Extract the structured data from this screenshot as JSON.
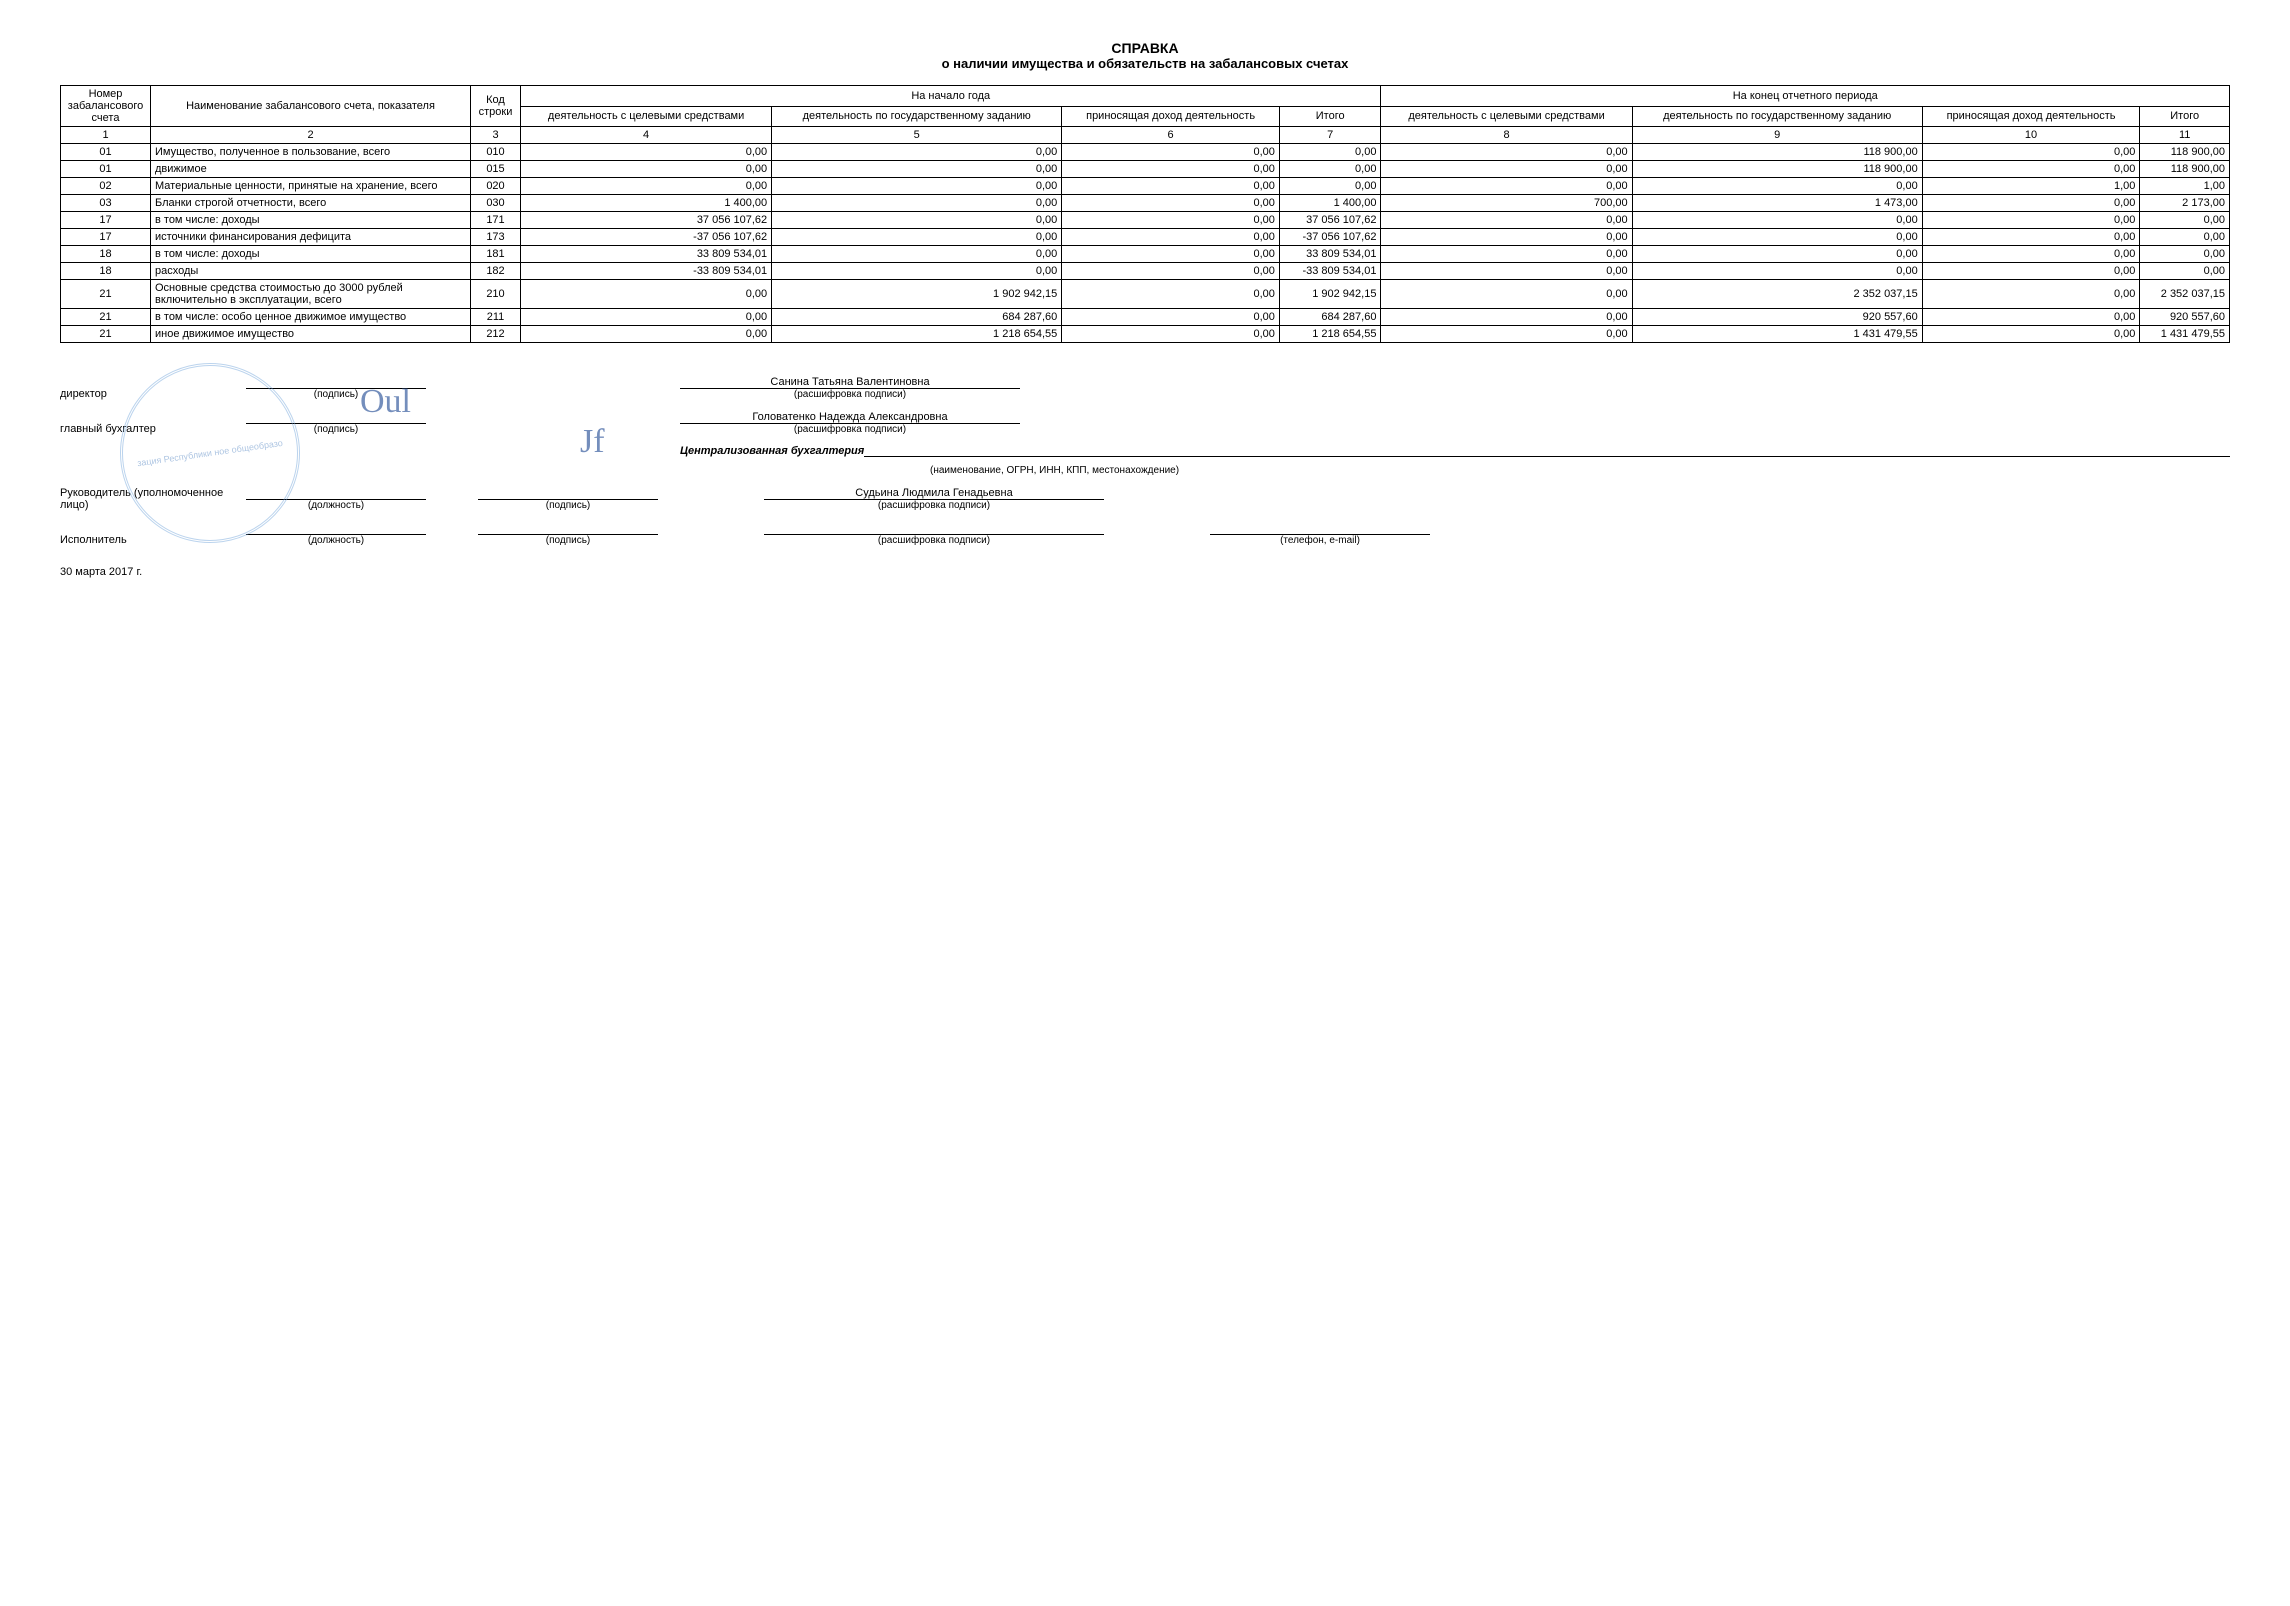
{
  "title": {
    "main": "СПРАВКА",
    "sub": "о наличии имущества и обязательств на забалансовых счетах"
  },
  "headers": {
    "num": "Номер забалансового счета",
    "name": "Наименование забалансового счета, показателя",
    "code": "Код строки",
    "start_group": "На начало года",
    "end_group": "На конец отчетного периода",
    "col4": "деятельность с целевыми средствами",
    "col5": "деятельность по государственному заданию",
    "col6": "приносящая доход деятельность",
    "col7": "Итого",
    "col8": "деятельность с целевыми средствами",
    "col9": "деятельность по государственному заданию",
    "col10": "приносящая доход деятельность",
    "col11": "Итого",
    "n1": "1",
    "n2": "2",
    "n3": "3",
    "n4": "4",
    "n5": "5",
    "n6": "6",
    "n7": "7",
    "n8": "8",
    "n9": "9",
    "n10": "10",
    "n11": "11"
  },
  "rows": [
    {
      "num": "01",
      "name": "Имущество, полученное в пользование, всего",
      "code": "010",
      "c4": "0,00",
      "c5": "0,00",
      "c6": "0,00",
      "c7": "0,00",
      "c8": "0,00",
      "c9": "118 900,00",
      "c10": "0,00",
      "c11": "118 900,00"
    },
    {
      "num": "01",
      "name": "движимое",
      "code": "015",
      "c4": "0,00",
      "c5": "0,00",
      "c6": "0,00",
      "c7": "0,00",
      "c8": "0,00",
      "c9": "118 900,00",
      "c10": "0,00",
      "c11": "118 900,00"
    },
    {
      "num": "02",
      "name": "Материальные ценности, принятые на хранение, всего",
      "code": "020",
      "c4": "0,00",
      "c5": "0,00",
      "c6": "0,00",
      "c7": "0,00",
      "c8": "0,00",
      "c9": "0,00",
      "c10": "1,00",
      "c11": "1,00"
    },
    {
      "num": "03",
      "name": "Бланки строгой отчетности, всего",
      "code": "030",
      "c4": "1 400,00",
      "c5": "0,00",
      "c6": "0,00",
      "c7": "1 400,00",
      "c8": "700,00",
      "c9": "1 473,00",
      "c10": "0,00",
      "c11": "2 173,00"
    },
    {
      "num": "17",
      "name": "в том числе: доходы",
      "code": "171",
      "c4": "37 056 107,62",
      "c5": "0,00",
      "c6": "0,00",
      "c7": "37 056 107,62",
      "c8": "0,00",
      "c9": "0,00",
      "c10": "0,00",
      "c11": "0,00"
    },
    {
      "num": "17",
      "name": "источники финансирования дефицита",
      "code": "173",
      "c4": "-37 056 107,62",
      "c5": "0,00",
      "c6": "0,00",
      "c7": "-37 056 107,62",
      "c8": "0,00",
      "c9": "0,00",
      "c10": "0,00",
      "c11": "0,00"
    },
    {
      "num": "18",
      "name": "в том числе: доходы",
      "code": "181",
      "c4": "33 809 534,01",
      "c5": "0,00",
      "c6": "0,00",
      "c7": "33 809 534,01",
      "c8": "0,00",
      "c9": "0,00",
      "c10": "0,00",
      "c11": "0,00"
    },
    {
      "num": "18",
      "name": "расходы",
      "code": "182",
      "c4": "-33 809 534,01",
      "c5": "0,00",
      "c6": "0,00",
      "c7": "-33 809 534,01",
      "c8": "0,00",
      "c9": "0,00",
      "c10": "0,00",
      "c11": "0,00"
    },
    {
      "num": "21",
      "name": "Основные средства стоимостью до 3000 рублей включительно в эксплуатации, всего",
      "code": "210",
      "c4": "0,00",
      "c5": "1 902 942,15",
      "c6": "0,00",
      "c7": "1 902 942,15",
      "c8": "0,00",
      "c9": "2 352 037,15",
      "c10": "0,00",
      "c11": "2 352 037,15"
    },
    {
      "num": "21",
      "name": "в том числе: особо ценное движимое имущество",
      "code": "211",
      "c4": "0,00",
      "c5": "684 287,60",
      "c6": "0,00",
      "c7": "684 287,60",
      "c8": "0,00",
      "c9": "920 557,60",
      "c10": "0,00",
      "c11": "920 557,60"
    },
    {
      "num": "21",
      "name": "иное движимое имущество",
      "code": "212",
      "c4": "0,00",
      "c5": "1 218 654,55",
      "c6": "0,00",
      "c7": "1 218 654,55",
      "c8": "0,00",
      "c9": "1 431 479,55",
      "c10": "0,00",
      "c11": "1 431 479,55"
    }
  ],
  "signatures": {
    "director_label": "директор",
    "chief_acc_label": "главный бухгалтер",
    "head_label": "Руководитель (уполномоченное лицо)",
    "executor_label": "Исполнитель",
    "podpis": "(подпись)",
    "dolzh": "(должность)",
    "rash": "(расшифровка подписи)",
    "org_hint": "(наименование, ОГРН, ИНН, КПП, местонахождение)",
    "tel_hint": "(телефон, e-mail)",
    "name1": "Санина Татьяна Валентиновна",
    "name2": "Головатенко Надежда Александровна",
    "name3": "Судьина Людмила Генадьевна",
    "central": "Централизованная бухгалтерия",
    "date": "30 марта 2017 г.",
    "stamp_text": "зация Республики\nное общеобразо"
  }
}
